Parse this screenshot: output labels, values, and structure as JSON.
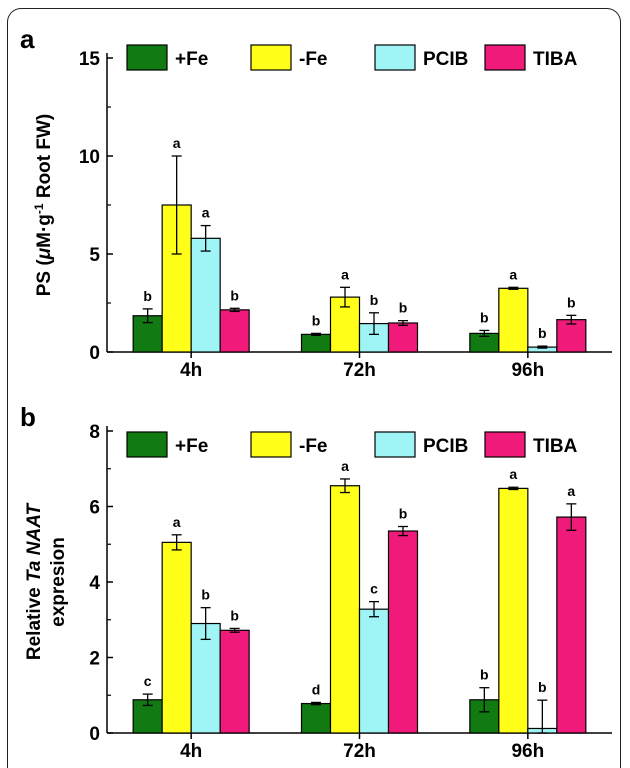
{
  "colors": {
    "+Fe": "#127a12",
    "-Fe": "#ffff1a",
    "PCIB": "#9ff5f5",
    "TIBA": "#f01a7a"
  },
  "chart_data": [
    {
      "panel": "a",
      "type": "bar",
      "categories": [
        "4h",
        "72h",
        "96h"
      ],
      "ylim": [
        0,
        15
      ],
      "yticks": [
        0,
        5,
        10,
        15
      ],
      "ylabel_lines": [
        [
          {
            "t": "PS (",
            "italic": false
          },
          {
            "t": "μ",
            "italic": true
          },
          {
            "t": "M·g",
            "italic": false
          },
          {
            "t": "-1",
            "sup": true
          },
          {
            "t": " Root FW)",
            "italic": false
          }
        ]
      ],
      "series": [
        {
          "name": "+Fe",
          "values": [
            1.85,
            0.9,
            0.95
          ],
          "errors": [
            0.35,
            0.05,
            0.15
          ],
          "letters": [
            "b",
            "b",
            "b"
          ]
        },
        {
          "name": "-Fe",
          "values": [
            7.5,
            2.8,
            3.25
          ],
          "errors": [
            2.5,
            0.5,
            0.05
          ],
          "letters": [
            "a",
            "a",
            "a"
          ]
        },
        {
          "name": "PCIB",
          "values": [
            5.8,
            1.45,
            0.25
          ],
          "errors": [
            0.65,
            0.55,
            0.05
          ],
          "letters": [
            "a",
            "b",
            "b"
          ]
        },
        {
          "name": "TIBA",
          "values": [
            2.15,
            1.48,
            1.65
          ],
          "errors": [
            0.08,
            0.12,
            0.22
          ],
          "letters": [
            "b",
            "b",
            "b"
          ]
        }
      ]
    },
    {
      "panel": "b",
      "type": "bar",
      "categories": [
        "4h",
        "72h",
        "96h"
      ],
      "ylim": [
        0,
        8
      ],
      "yticks": [
        0,
        2,
        4,
        6,
        8
      ],
      "ylabel_lines": [
        [
          {
            "t": "Relative ",
            "italic": false
          },
          {
            "t": "Ta NAAT",
            "italic": true
          }
        ],
        [
          {
            "t": "expresion",
            "italic": false
          }
        ]
      ],
      "series": [
        {
          "name": "+Fe",
          "values": [
            0.88,
            0.78,
            0.88
          ],
          "errors": [
            0.15,
            0.03,
            0.32
          ],
          "letters": [
            "c",
            "d",
            "b"
          ]
        },
        {
          "name": "-Fe",
          "values": [
            5.05,
            6.55,
            6.48
          ],
          "errors": [
            0.2,
            0.18,
            0.03
          ],
          "letters": [
            "a",
            "a",
            "a"
          ]
        },
        {
          "name": "PCIB",
          "values": [
            2.9,
            3.28,
            0.12
          ],
          "errors": [
            0.42,
            0.2,
            0.75
          ],
          "letters": [
            "b",
            "c",
            "b"
          ]
        },
        {
          "name": "TIBA",
          "values": [
            2.72,
            5.35,
            5.72
          ],
          "errors": [
            0.05,
            0.12,
            0.35
          ],
          "letters": [
            "b",
            "b",
            "a"
          ]
        }
      ]
    }
  ]
}
